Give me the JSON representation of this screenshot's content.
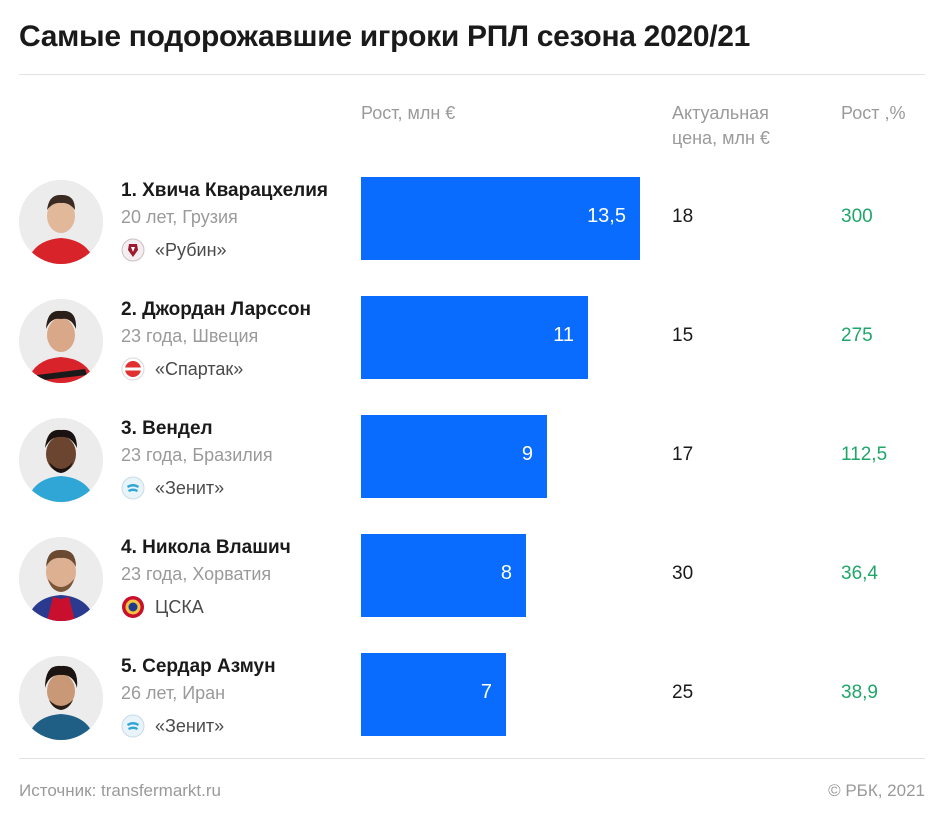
{
  "title": "Самые подорожавшие игроки РПЛ сезона 2020/21",
  "headers": {
    "growth_mln": "Рост, млн €",
    "price_line1": "Актуальная",
    "price_line2": "цена, млн €",
    "growth_pct": "Рост ,%"
  },
  "colors": {
    "bar": "#0a6cff",
    "growth_text": "#1fa66a"
  },
  "chart_data": {
    "type": "bar",
    "orientation": "horizontal",
    "title": "Самые подорожавшие игроки РПЛ сезона 2020/21",
    "xlabel": "Рост, млн €",
    "xlim": [
      0,
      13.5
    ],
    "categories": [
      "1. Хвича Кварацхелия",
      "2. Джордан Ларссон",
      "3. Вендел",
      "4. Никола Влашич",
      "5. Сердар Азмун"
    ],
    "values": [
      13.5,
      11,
      9,
      8,
      7
    ],
    "value_labels": [
      "13,5",
      "11",
      "9",
      "8",
      "7"
    ]
  },
  "players": [
    {
      "name": "1. Хвича Кварацхелия",
      "info": "20 лет, Грузия",
      "club": "«Рубин»",
      "club_icon": "rubin-logo-icon",
      "growth": 13.5,
      "growth_label": "13,5",
      "price": "18",
      "growth_pct": "300"
    },
    {
      "name": "2. Джордан Ларссон",
      "info": "23 года, Швеция",
      "club": "«Спартак»",
      "club_icon": "spartak-logo-icon",
      "growth": 11,
      "growth_label": "11",
      "price": "15",
      "growth_pct": "275"
    },
    {
      "name": "3. Вендел",
      "info": "23 года, Бразилия",
      "club": "«Зенит»",
      "club_icon": "zenit-logo-icon",
      "growth": 9,
      "growth_label": "9",
      "price": "17",
      "growth_pct": "112,5"
    },
    {
      "name": "4. Никола Влашич",
      "info": "23 года, Хорватия",
      "club": "ЦСКА",
      "club_icon": "cska-logo-icon",
      "growth": 8,
      "growth_label": "8",
      "price": "30",
      "growth_pct": "36,4"
    },
    {
      "name": "5. Сердар Азмун",
      "info": "26 лет, Иран",
      "club": "«Зенит»",
      "club_icon": "zenit-logo-icon",
      "growth": 7,
      "growth_label": "7",
      "price": "25",
      "growth_pct": "38,9"
    }
  ],
  "footer": {
    "source": "Источник: transfermarkt.ru",
    "copyright": "© РБК, 2021"
  }
}
